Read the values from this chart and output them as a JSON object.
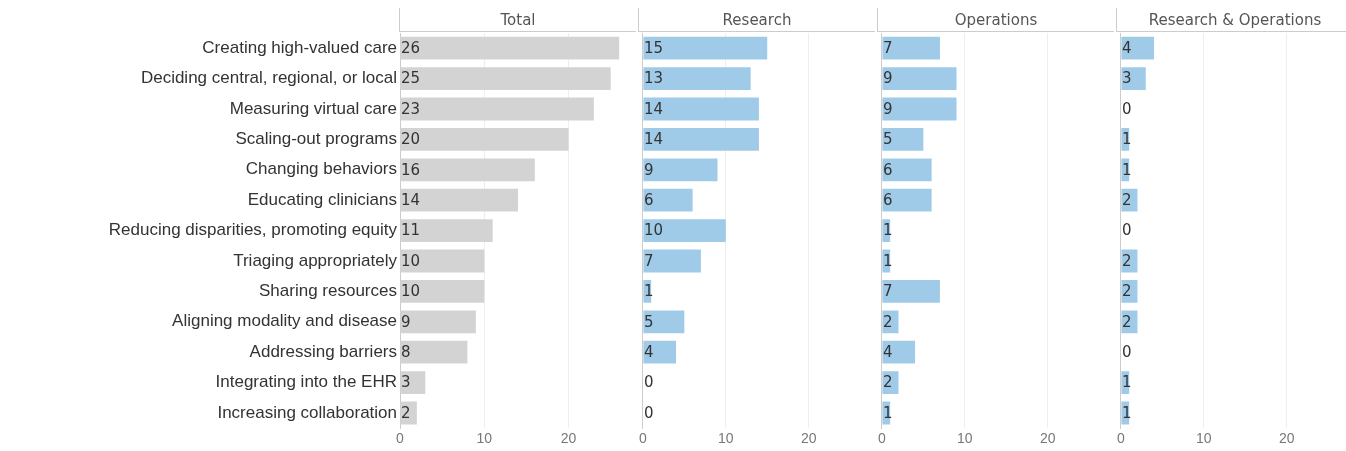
{
  "chart_data": [
    {
      "type": "bar",
      "orientation": "horizontal",
      "title": "Total",
      "categories": [
        "Creating high-valued care",
        "Deciding central, regional, or local",
        "Measuring virtual care",
        "Scaling-out programs",
        "Changing behaviors",
        "Educating clinicians",
        "Reducing disparities, promoting equity",
        "Triaging appropriately",
        "Sharing resources",
        "Aligning modality and disease",
        "Addressing barriers",
        "Integrating into the EHR",
        "Increasing collaboration"
      ],
      "values": [
        26,
        25,
        23,
        20,
        16,
        14,
        11,
        10,
        10,
        9,
        8,
        3,
        2
      ],
      "color": "#d3d3d3",
      "xlim": [
        0,
        28
      ],
      "xticks": [
        0,
        10,
        20
      ],
      "grid": "x",
      "data_labels": true
    },
    {
      "type": "bar",
      "orientation": "horizontal",
      "title": "Research",
      "categories": [
        null,
        null,
        null,
        null,
        null,
        null,
        null,
        null,
        null,
        null,
        null,
        null,
        null
      ],
      "values": [
        15,
        13,
        14,
        14,
        9,
        6,
        10,
        7,
        1,
        5,
        4,
        0,
        0
      ],
      "color": "#a0cbe8",
      "xlim": [
        0,
        28
      ],
      "xticks": [
        0,
        10,
        20
      ],
      "grid": "x",
      "data_labels": true,
      "tick_labels": "x"
    },
    {
      "type": "bar",
      "orientation": "horizontal",
      "title": "Operations",
      "categories": [
        null,
        null,
        null,
        null,
        null,
        null,
        null,
        null,
        null,
        null,
        null,
        null,
        null
      ],
      "values": [
        7,
        9,
        9,
        5,
        6,
        6,
        1,
        1,
        7,
        2,
        4,
        2,
        1
      ],
      "color": "#a0cbe8",
      "xlim": [
        0,
        28
      ],
      "xticks": [
        0,
        10,
        20
      ],
      "grid": "x",
      "data_labels": true,
      "tick_labels": "x"
    },
    {
      "type": "bar",
      "orientation": "horizontal",
      "title": "Research & Operations",
      "categories": [
        null,
        null,
        null,
        null,
        null,
        null,
        null,
        null,
        null,
        null,
        null,
        null,
        null
      ],
      "values": [
        4,
        3,
        0,
        1,
        1,
        2,
        0,
        2,
        2,
        2,
        0,
        1,
        1
      ],
      "color": "#a0cbe8",
      "xlim": [
        0,
        28
      ],
      "xticks": [
        0,
        10,
        20
      ],
      "grid": "x",
      "data_labels": true,
      "tick_labels": "x"
    }
  ]
}
